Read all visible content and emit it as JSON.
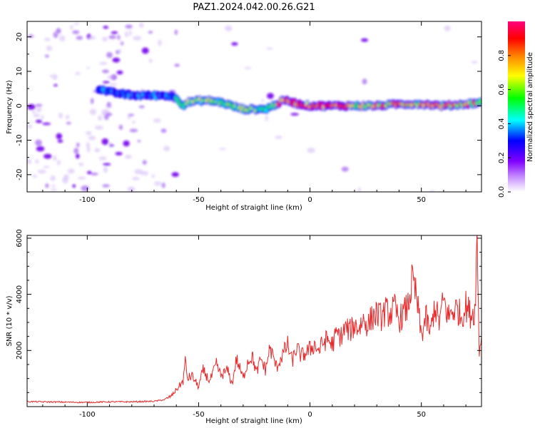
{
  "figure_title": "PAZ1.2024.042.00.26.G21",
  "chart_data": [
    {
      "type": "heatmap",
      "title": "PAZ1.2024.042.00.26.G21",
      "xlabel": "Height of straight line (km)",
      "ylabel": "Frequency (Hz)",
      "xlim": [
        -127,
        77
      ],
      "ylim": [
        -25,
        24.5
      ],
      "xticks": [
        -100,
        -50,
        0,
        50
      ],
      "yticks": [
        -20,
        -10,
        0,
        10,
        20
      ],
      "grid": false,
      "colorbar": {
        "label": "Normalized spectral amplitude",
        "range": [
          0,
          1
        ],
        "ticks": [
          "0.0",
          "0.2",
          "0.4",
          "0.6",
          "0.8"
        ],
        "colors": [
          "#ffffff",
          "#cc99ff",
          "#8000ff",
          "#0000ff",
          "#00ffff",
          "#00ff00",
          "#ffff00",
          "#ff8000",
          "#ff0000",
          "#ff0080"
        ]
      },
      "ridge": {
        "x": [
          -100,
          -95,
          -90,
          -85,
          -80,
          -75,
          -70,
          -65,
          -60,
          -57,
          -55,
          -50,
          -45,
          -40,
          -35,
          -30,
          -25,
          -20,
          -15,
          -12,
          -10,
          -5,
          0,
          5,
          10,
          20,
          30,
          40,
          50,
          60,
          70,
          77
        ],
        "frequency": [
          5,
          5,
          4,
          3.5,
          3,
          3,
          3,
          3,
          2.5,
          0,
          1,
          1.5,
          1.5,
          1,
          0,
          -1,
          -1,
          -1,
          0.5,
          1.5,
          1.5,
          0.5,
          0,
          0,
          0,
          0,
          0,
          0.5,
          0.5,
          0,
          0.5,
          1
        ]
      }
    },
    {
      "type": "line",
      "xlabel": "Height of straight line (km)",
      "ylabel": "SNR (10 * v/v)",
      "xlim": [
        -127,
        77
      ],
      "ylim": [
        0,
        6100
      ],
      "xticks": [
        -100,
        -50,
        0,
        50
      ],
      "yticks": [
        2000,
        4000,
        6000
      ],
      "grid": false,
      "color": "#e8292b",
      "series": [
        {
          "x": [
            -127,
            -120,
            -110,
            -100,
            -90,
            -80,
            -70,
            -65,
            -62,
            -60,
            -57,
            -56,
            -55,
            -53,
            -50,
            -48,
            -45,
            -42,
            -40,
            -37,
            -35,
            -33,
            -30,
            -28,
            -26,
            -24,
            -22,
            -20,
            -18,
            -15,
            -12,
            -10,
            -8,
            -6,
            -4,
            -2,
            0,
            2,
            4,
            6,
            8,
            10,
            12,
            14,
            16,
            18,
            20,
            22,
            24,
            26,
            28,
            30,
            32,
            34,
            36,
            38,
            40,
            42,
            44,
            46,
            48,
            50,
            52,
            54,
            56,
            58,
            60,
            62,
            64,
            66,
            68,
            70,
            72,
            74,
            75,
            76,
            77
          ],
          "y": [
            180,
            170,
            160,
            150,
            170,
            170,
            190,
            250,
            400,
            600,
            900,
            1600,
            1000,
            1100,
            700,
            1300,
            900,
            1500,
            1100,
            1300,
            800,
            1700,
            1000,
            1600,
            1800,
            1200,
            1700,
            1300,
            2100,
            1400,
            1900,
            2200,
            1600,
            2100,
            1800,
            1900,
            2050,
            2200,
            2000,
            2300,
            2400,
            2200,
            2600,
            2500,
            2800,
            2700,
            2900,
            2800,
            3100,
            2900,
            3200,
            3300,
            3200,
            3400,
            3300,
            3500,
            3100,
            3300,
            3600,
            4500,
            3800,
            2500,
            3200,
            2600,
            3600,
            3000,
            3800,
            3200,
            3400,
            3500,
            3200,
            3600,
            3300,
            3400,
            6000,
            2000,
            2500
          ]
        }
      ]
    }
  ]
}
